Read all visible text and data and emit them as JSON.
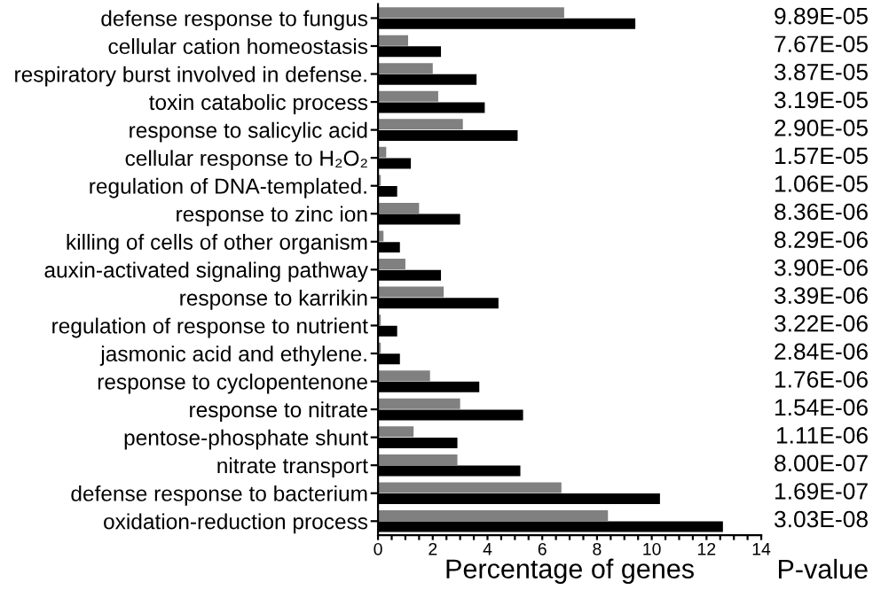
{
  "chart_data": {
    "type": "bar",
    "orientation": "horizontal",
    "xlabel": "Percentage of genes",
    "categories": [
      "defense response to fungus",
      "cellular cation homeostasis",
      "respiratory burst involved in defense.",
      "toxin catabolic process",
      "response to salicylic acid",
      "cellular response to H₂O₂",
      "regulation of DNA-templated.",
      "response to zinc ion",
      "killing of cells of other organism",
      "auxin-activated signaling pathway",
      "response to karrikin",
      "regulation of response to nutrient",
      "jasmonic acid and ethylene.",
      "response to cyclopentenone",
      "response to nitrate",
      "pentose-phosphate shunt",
      "nitrate transport",
      "defense response to bacterium",
      "oxidation-reduction process"
    ],
    "series": [
      {
        "color": "#808080",
        "values": [
          6.8,
          1.1,
          2.0,
          2.2,
          3.1,
          0.3,
          0.1,
          1.5,
          0.2,
          1.0,
          2.4,
          0.1,
          0.1,
          1.9,
          3.0,
          1.3,
          2.9,
          6.7,
          8.4
        ]
      },
      {
        "color": "#000000",
        "values": [
          9.4,
          2.3,
          3.6,
          3.9,
          5.1,
          1.2,
          0.7,
          3.0,
          0.8,
          2.3,
          4.4,
          0.7,
          0.8,
          3.7,
          5.3,
          2.9,
          5.2,
          10.3,
          12.6
        ]
      }
    ],
    "xlim": [
      0,
      14
    ],
    "xticks": [
      0,
      {
        "value": 0.5,
        "label": null
      },
      2,
      {
        "value": 1,
        "label": null
      },
      {
        "value": 1.5,
        "label": null
      },
      {
        "value": 2.5,
        "label": null
      },
      {
        "value": 3,
        "label": null
      },
      {
        "value": 3.5,
        "label": null
      },
      4,
      {
        "value": 4.5,
        "label": null
      },
      {
        "value": 5,
        "label": null
      },
      {
        "value": 5.5,
        "label": null
      },
      6,
      {
        "value": 6.5,
        "label": null
      },
      {
        "value": 7,
        "label": null
      },
      {
        "value": 7.5,
        "label": null
      },
      8,
      {
        "value": 8.5,
        "label": null
      },
      {
        "value": 9,
        "label": null
      },
      {
        "value": 9.5,
        "label": null
      },
      10,
      {
        "value": 10.5,
        "label": null
      },
      {
        "value": 11,
        "label": null
      },
      {
        "value": 11.5,
        "label": null
      },
      12,
      {
        "value": 12.5,
        "label": null
      },
      {
        "value": 13,
        "label": null
      },
      {
        "value": 13.5,
        "label": null
      },
      14
    ],
    "annotations": [
      "9.89E-05",
      "7.67E-05",
      "3.87E-05",
      "3.19E-05",
      "2.90E-05",
      "1.57E-05",
      "1.06E-05",
      "8.36E-06",
      "8.29E-06",
      "3.90E-06",
      "3.39E-06",
      "3.22E-06",
      "2.84E-06",
      "1.76E-06",
      "1.54E-06",
      "1.11E-06",
      "8.00E-07",
      "1.69E-07",
      "3.03E-08",
      "P-value"
    ]
  }
}
